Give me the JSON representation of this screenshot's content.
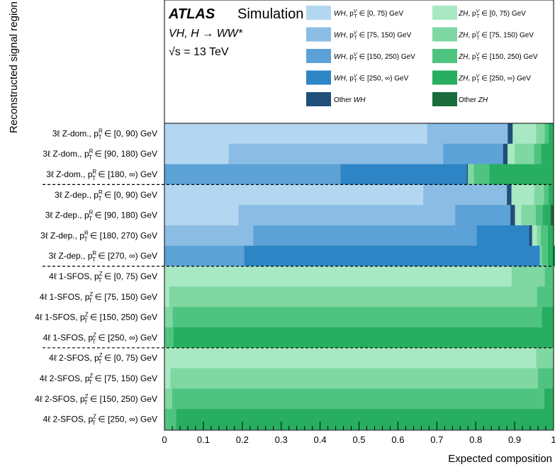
{
  "chart_data": {
    "type": "bar",
    "orientation": "horizontal-stacked",
    "experiment": "ATLAS",
    "label": "Simulation",
    "process": "VH, H → WW*",
    "energy": "√s = 13 TeV",
    "xlabel": "Expected composition",
    "ylabel": "Reconstructed signal region",
    "xlim": [
      0,
      1
    ],
    "xticks": [
      "0",
      "0.1",
      "0.2",
      "0.3",
      "0.4",
      "0.5",
      "0.6",
      "0.7",
      "0.8",
      "0.9",
      "1"
    ],
    "categories": [
      "3ℓ Z-dom., pT^R ∈ [0, 90) GeV",
      "3ℓ Z-dom., pT^R ∈ [90, 180) GeV",
      "3ℓ Z-dom., pT^R ∈ [180, ∞) GeV",
      "3ℓ Z-dep., pT^R ∈ [0, 90) GeV",
      "3ℓ Z-dep., pT^R ∈ [90, 180) GeV",
      "3ℓ Z-dep., pT^R ∈ [180, 270) GeV",
      "3ℓ Z-dep., pT^R ∈ [270, ∞) GeV",
      "4ℓ 1-SFOS, pT^Z ∈ [0, 75) GeV",
      "4ℓ 1-SFOS, pT^Z ∈ [75, 150) GeV",
      "4ℓ 1-SFOS, pT^Z ∈ [150, 250) GeV",
      "4ℓ 1-SFOS, pT^Z ∈ [250, ∞) GeV",
      "4ℓ 2-SFOS, pT^Z ∈ [0, 75) GeV",
      "4ℓ 2-SFOS, pT^Z ∈ [75, 150) GeV",
      "4ℓ 2-SFOS, pT^Z ∈ [150, 250) GeV",
      "4ℓ 2-SFOS, pT^Z ∈ [250, ∞) GeV"
    ],
    "category_parts": [
      {
        "prefix": "3ℓ Z-dom., p",
        "sup": "R",
        "range": " ∈ [0, 90) GeV"
      },
      {
        "prefix": "3ℓ Z-dom., p",
        "sup": "R",
        "range": " ∈ [90, 180) GeV"
      },
      {
        "prefix": "3ℓ Z-dom., p",
        "sup": "R",
        "range": " ∈ [180, ∞) GeV"
      },
      {
        "prefix": "3ℓ Z-dep., p",
        "sup": "R",
        "range": " ∈ [0, 90) GeV"
      },
      {
        "prefix": "3ℓ Z-dep., p",
        "sup": "R",
        "range": " ∈ [90, 180) GeV"
      },
      {
        "prefix": "3ℓ Z-dep., p",
        "sup": "R",
        "range": " ∈ [180, 270) GeV"
      },
      {
        "prefix": "3ℓ Z-dep., p",
        "sup": "R",
        "range": " ∈ [270, ∞) GeV"
      },
      {
        "prefix": "4ℓ 1-SFOS, p",
        "sup": "Z",
        "range": " ∈ [0, 75) GeV"
      },
      {
        "prefix": "4ℓ 1-SFOS, p",
        "sup": "Z",
        "range": " ∈ [75, 150) GeV"
      },
      {
        "prefix": "4ℓ 1-SFOS, p",
        "sup": "Z",
        "range": " ∈ [150, 250) GeV"
      },
      {
        "prefix": "4ℓ 1-SFOS, p",
        "sup": "Z",
        "range": " ∈ [250, ∞) GeV"
      },
      {
        "prefix": "4ℓ 2-SFOS, p",
        "sup": "Z",
        "range": " ∈ [0, 75) GeV"
      },
      {
        "prefix": "4ℓ 2-SFOS, p",
        "sup": "Z",
        "range": " ∈ [75, 150) GeV"
      },
      {
        "prefix": "4ℓ 2-SFOS, p",
        "sup": "Z",
        "range": " ∈ [150, 250) GeV"
      },
      {
        "prefix": "4ℓ 2-SFOS, p",
        "sup": "Z",
        "range": " ∈ [250, ∞) GeV"
      }
    ],
    "group_separators_after": [
      2,
      6,
      10
    ],
    "series": [
      {
        "name": "WH, pT^V ∈ [0, 75) GeV",
        "prefix": "WH",
        "range": " ∈ [0, 75) GeV",
        "color": "#b3d7f0",
        "values": [
          0.675,
          0.165,
          0.0,
          0.665,
          0.19,
          0.0,
          0.0,
          0.0,
          0.0,
          0.0,
          0.0,
          0.0,
          0.0,
          0.0,
          0.0
        ]
      },
      {
        "name": "WH, pT^V ∈ [75, 150) GeV",
        "prefix": "WH",
        "range": " ∈ [75, 150) GeV",
        "color": "#8bbde4",
        "values": [
          0.207,
          0.551,
          0.0,
          0.215,
          0.557,
          0.228,
          0.0,
          0.0,
          0.0,
          0.0,
          0.0,
          0.0,
          0.0,
          0.0,
          0.0
        ]
      },
      {
        "name": "WH, pT^V ∈ [150, 250) GeV",
        "prefix": "WH",
        "range": " ∈ [150, 250) GeV",
        "color": "#5da2d6",
        "values": [
          0.0,
          0.154,
          0.452,
          0.0,
          0.142,
          0.574,
          0.205,
          0.0,
          0.0,
          0.0,
          0.0,
          0.0,
          0.0,
          0.0,
          0.0
        ]
      },
      {
        "name": "WH, pT^V ∈ [250, ∞) GeV",
        "prefix": "WH",
        "range": " ∈ [250, ∞) GeV",
        "color": "#2d85c6",
        "values": [
          0.0,
          0.0,
          0.325,
          0.0,
          0.0,
          0.135,
          0.76,
          0.0,
          0.0,
          0.0,
          0.0,
          0.0,
          0.0,
          0.0,
          0.0
        ]
      },
      {
        "name": "Other WH",
        "prefix": "Other WH",
        "range": "",
        "color": "#1f4e79",
        "values": [
          0.013,
          0.012,
          0.003,
          0.012,
          0.012,
          0.008,
          0.0,
          0.0,
          0.0,
          0.0,
          0.0,
          0.0,
          0.0,
          0.0,
          0.0
        ]
      },
      {
        "name": "ZH, pT^V ∈ [0, 75) GeV",
        "prefix": "ZH",
        "range": " ∈ [0, 75) GeV",
        "color": "#a8e8c3",
        "values": [
          0.06,
          0.018,
          0.0,
          0.058,
          0.016,
          0.012,
          0.0,
          0.892,
          0.012,
          0.0,
          0.0,
          0.955,
          0.015,
          0.0,
          0.0
        ]
      },
      {
        "name": "ZH, pT^V ∈ [75, 150) GeV",
        "prefix": "ZH",
        "range": " ∈ [75, 150) GeV",
        "color": "#7fd7a1",
        "values": [
          0.022,
          0.05,
          0.015,
          0.025,
          0.037,
          0.01,
          0.005,
          0.085,
          0.945,
          0.021,
          0.0,
          0.045,
          0.945,
          0.02,
          0.0
        ]
      },
      {
        "name": "ZH, pT^V ∈ [150, 250) GeV",
        "prefix": "ZH",
        "range": " ∈ [150, 250) GeV",
        "color": "#4fc380",
        "values": [
          0.01,
          0.018,
          0.04,
          0.012,
          0.018,
          0.018,
          0.015,
          0.023,
          0.043,
          0.949,
          0.023,
          0.0,
          0.04,
          0.956,
          0.03
        ],
        "note": ""
      },
      {
        "name": "ZH, pT^V ∈ [250, ∞) GeV",
        "prefix": "ZH",
        "range": " ∈ [250, ∞) GeV",
        "color": "#27ae60",
        "values": [
          0.013,
          0.032,
          0.165,
          0.013,
          0.02,
          0.015,
          0.02,
          0.0,
          0.0,
          0.03,
          0.977,
          0.0,
          0.0,
          0.024,
          0.97
        ]
      },
      {
        "name": "Other ZH",
        "prefix": "Other ZH",
        "range": "",
        "color": "#1a6b3c",
        "values": [
          0.0,
          0.0,
          0.0,
          0.0,
          0.008,
          0.0,
          0.0,
          0.0,
          0.0,
          0.0,
          0.0,
          0.0,
          0.0,
          0.0,
          0.0
        ]
      }
    ]
  }
}
